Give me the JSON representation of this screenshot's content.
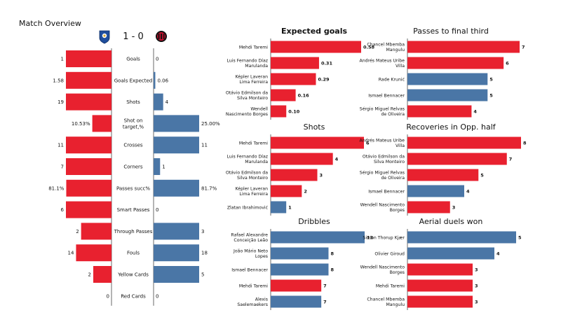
{
  "page": {
    "title": "Match Overview",
    "score": "1 - 0",
    "home_badge": "porto-crest-icon",
    "away_badge": "milan-crest-icon"
  },
  "colors": {
    "home": "#e8212f",
    "away": "#4a76a6",
    "text": "#111111",
    "axis": "#444444"
  },
  "chart_data": [
    {
      "type": "bar",
      "title": "Match Overview",
      "orientation": "mirrored-horizontal",
      "categories": [
        "Goals",
        "Goals Expected",
        "Shots",
        "Shot on target,%",
        "Crosses",
        "Corners",
        "Passes succ%",
        "Smart Passes",
        "Through Passes",
        "Fouls",
        "Yellow Cards",
        "Red Cards"
      ],
      "series": [
        {
          "name": "home",
          "values": [
            1,
            1.58,
            19,
            10.53,
            11,
            7,
            81.1,
            6,
            2,
            14,
            2,
            0
          ],
          "labels": [
            "1",
            "1.58",
            "19",
            "10.53%",
            "11",
            "7",
            "81.1%",
            "6",
            "2",
            "14",
            "2",
            "0"
          ]
        },
        {
          "name": "away",
          "values": [
            0,
            0.06,
            4,
            25.0,
            11,
            1,
            81.7,
            0,
            3,
            18,
            5,
            0
          ],
          "labels": [
            "0",
            "0.06",
            "4",
            "25.00%",
            "11",
            "1",
            "81.7%",
            "0",
            "3",
            "18",
            "5",
            "0"
          ]
        }
      ]
    },
    {
      "type": "bar",
      "title": "Expected goals",
      "bold_title": true,
      "max": 0.58,
      "decimals": 2,
      "items": [
        {
          "label": [
            "Mehdi Taremi"
          ],
          "value": 0.58,
          "team": "home"
        },
        {
          "label": [
            "Luis Fernando Díaz",
            "Marulanda"
          ],
          "value": 0.31,
          "team": "home"
        },
        {
          "label": [
            "Képler Laveran",
            "Lima Ferreira"
          ],
          "value": 0.29,
          "team": "home"
        },
        {
          "label": [
            "Otávio Edmilson da",
            "Silva Monteiro"
          ],
          "value": 0.16,
          "team": "home"
        },
        {
          "label": [
            "Wendell",
            "Nascimento Borges"
          ],
          "value": 0.1,
          "team": "home"
        }
      ]
    },
    {
      "type": "bar",
      "title": "Passes to final third",
      "max": 7,
      "decimals": 0,
      "items": [
        {
          "label": [
            "Chancel Mbemba",
            "Mangulu"
          ],
          "value": 7,
          "team": "home"
        },
        {
          "label": [
            "Andrés Mateus Uribe",
            "Villa"
          ],
          "value": 6,
          "team": "home"
        },
        {
          "label": [
            "Rade Krunić"
          ],
          "value": 5,
          "team": "away"
        },
        {
          "label": [
            "Ismael Bennacer"
          ],
          "value": 5,
          "team": "away"
        },
        {
          "label": [
            "Sérgio Miguel Relvas",
            "de Oliveira"
          ],
          "value": 4,
          "team": "home"
        }
      ]
    },
    {
      "type": "bar",
      "title": "Shots",
      "max": 6,
      "decimals": 0,
      "items": [
        {
          "label": [
            "Mehdi Taremi"
          ],
          "value": 6,
          "team": "home"
        },
        {
          "label": [
            "Luis Fernando Díaz",
            "Marulanda"
          ],
          "value": 4,
          "team": "home"
        },
        {
          "label": [
            "Otávio Edmilson da",
            "Silva Monteiro"
          ],
          "value": 3,
          "team": "home"
        },
        {
          "label": [
            "Képler Laveran",
            "Lima Ferreira"
          ],
          "value": 2,
          "team": "home"
        },
        {
          "label": [
            "Zlatan Ibrahimović"
          ],
          "value": 1,
          "team": "away"
        }
      ]
    },
    {
      "type": "bar",
      "title": "Recoveries in Opp. half",
      "max": 8,
      "decimals": 0,
      "items": [
        {
          "label": [
            "Andrés Mateus Uribe",
            "Villa"
          ],
          "value": 8,
          "team": "home"
        },
        {
          "label": [
            "Otávio Edmilson da",
            "Silva Monteiro"
          ],
          "value": 7,
          "team": "home"
        },
        {
          "label": [
            "Sérgio Miguel Relvas",
            "de Oliveira"
          ],
          "value": 5,
          "team": "home"
        },
        {
          "label": [
            "Ismael Bennacer"
          ],
          "value": 4,
          "team": "away"
        },
        {
          "label": [
            "Wendell Nascimento",
            "Borges"
          ],
          "value": 3,
          "team": "home"
        }
      ]
    },
    {
      "type": "bar",
      "title": "Dribbles",
      "max": 13,
      "decimals": 0,
      "items": [
        {
          "label": [
            "Rafael Alexandre",
            "Conceição Leão"
          ],
          "value": 13,
          "team": "away"
        },
        {
          "label": [
            "João Mário Neto",
            "Lopes"
          ],
          "value": 8,
          "team": "away"
        },
        {
          "label": [
            "Ismael Bennacer"
          ],
          "value": 8,
          "team": "away"
        },
        {
          "label": [
            "Mehdi Taremi"
          ],
          "value": 7,
          "team": "home"
        },
        {
          "label": [
            "Alexis",
            "Saelemaekers"
          ],
          "value": 7,
          "team": "away"
        }
      ]
    },
    {
      "type": "bar",
      "title": "Aerial duels won",
      "max": 5,
      "decimals": 0,
      "items": [
        {
          "label": [
            "Simon Thorup Kjær"
          ],
          "value": 5,
          "team": "away"
        },
        {
          "label": [
            "Olivier Giroud"
          ],
          "value": 4,
          "team": "away"
        },
        {
          "label": [
            "Wendell Nascimento",
            "Borges"
          ],
          "value": 3,
          "team": "home"
        },
        {
          "label": [
            "Mehdi Taremi"
          ],
          "value": 3,
          "team": "home"
        },
        {
          "label": [
            "Chancel Mbemba",
            "Mangulu"
          ],
          "value": 3,
          "team": "home"
        }
      ]
    }
  ]
}
